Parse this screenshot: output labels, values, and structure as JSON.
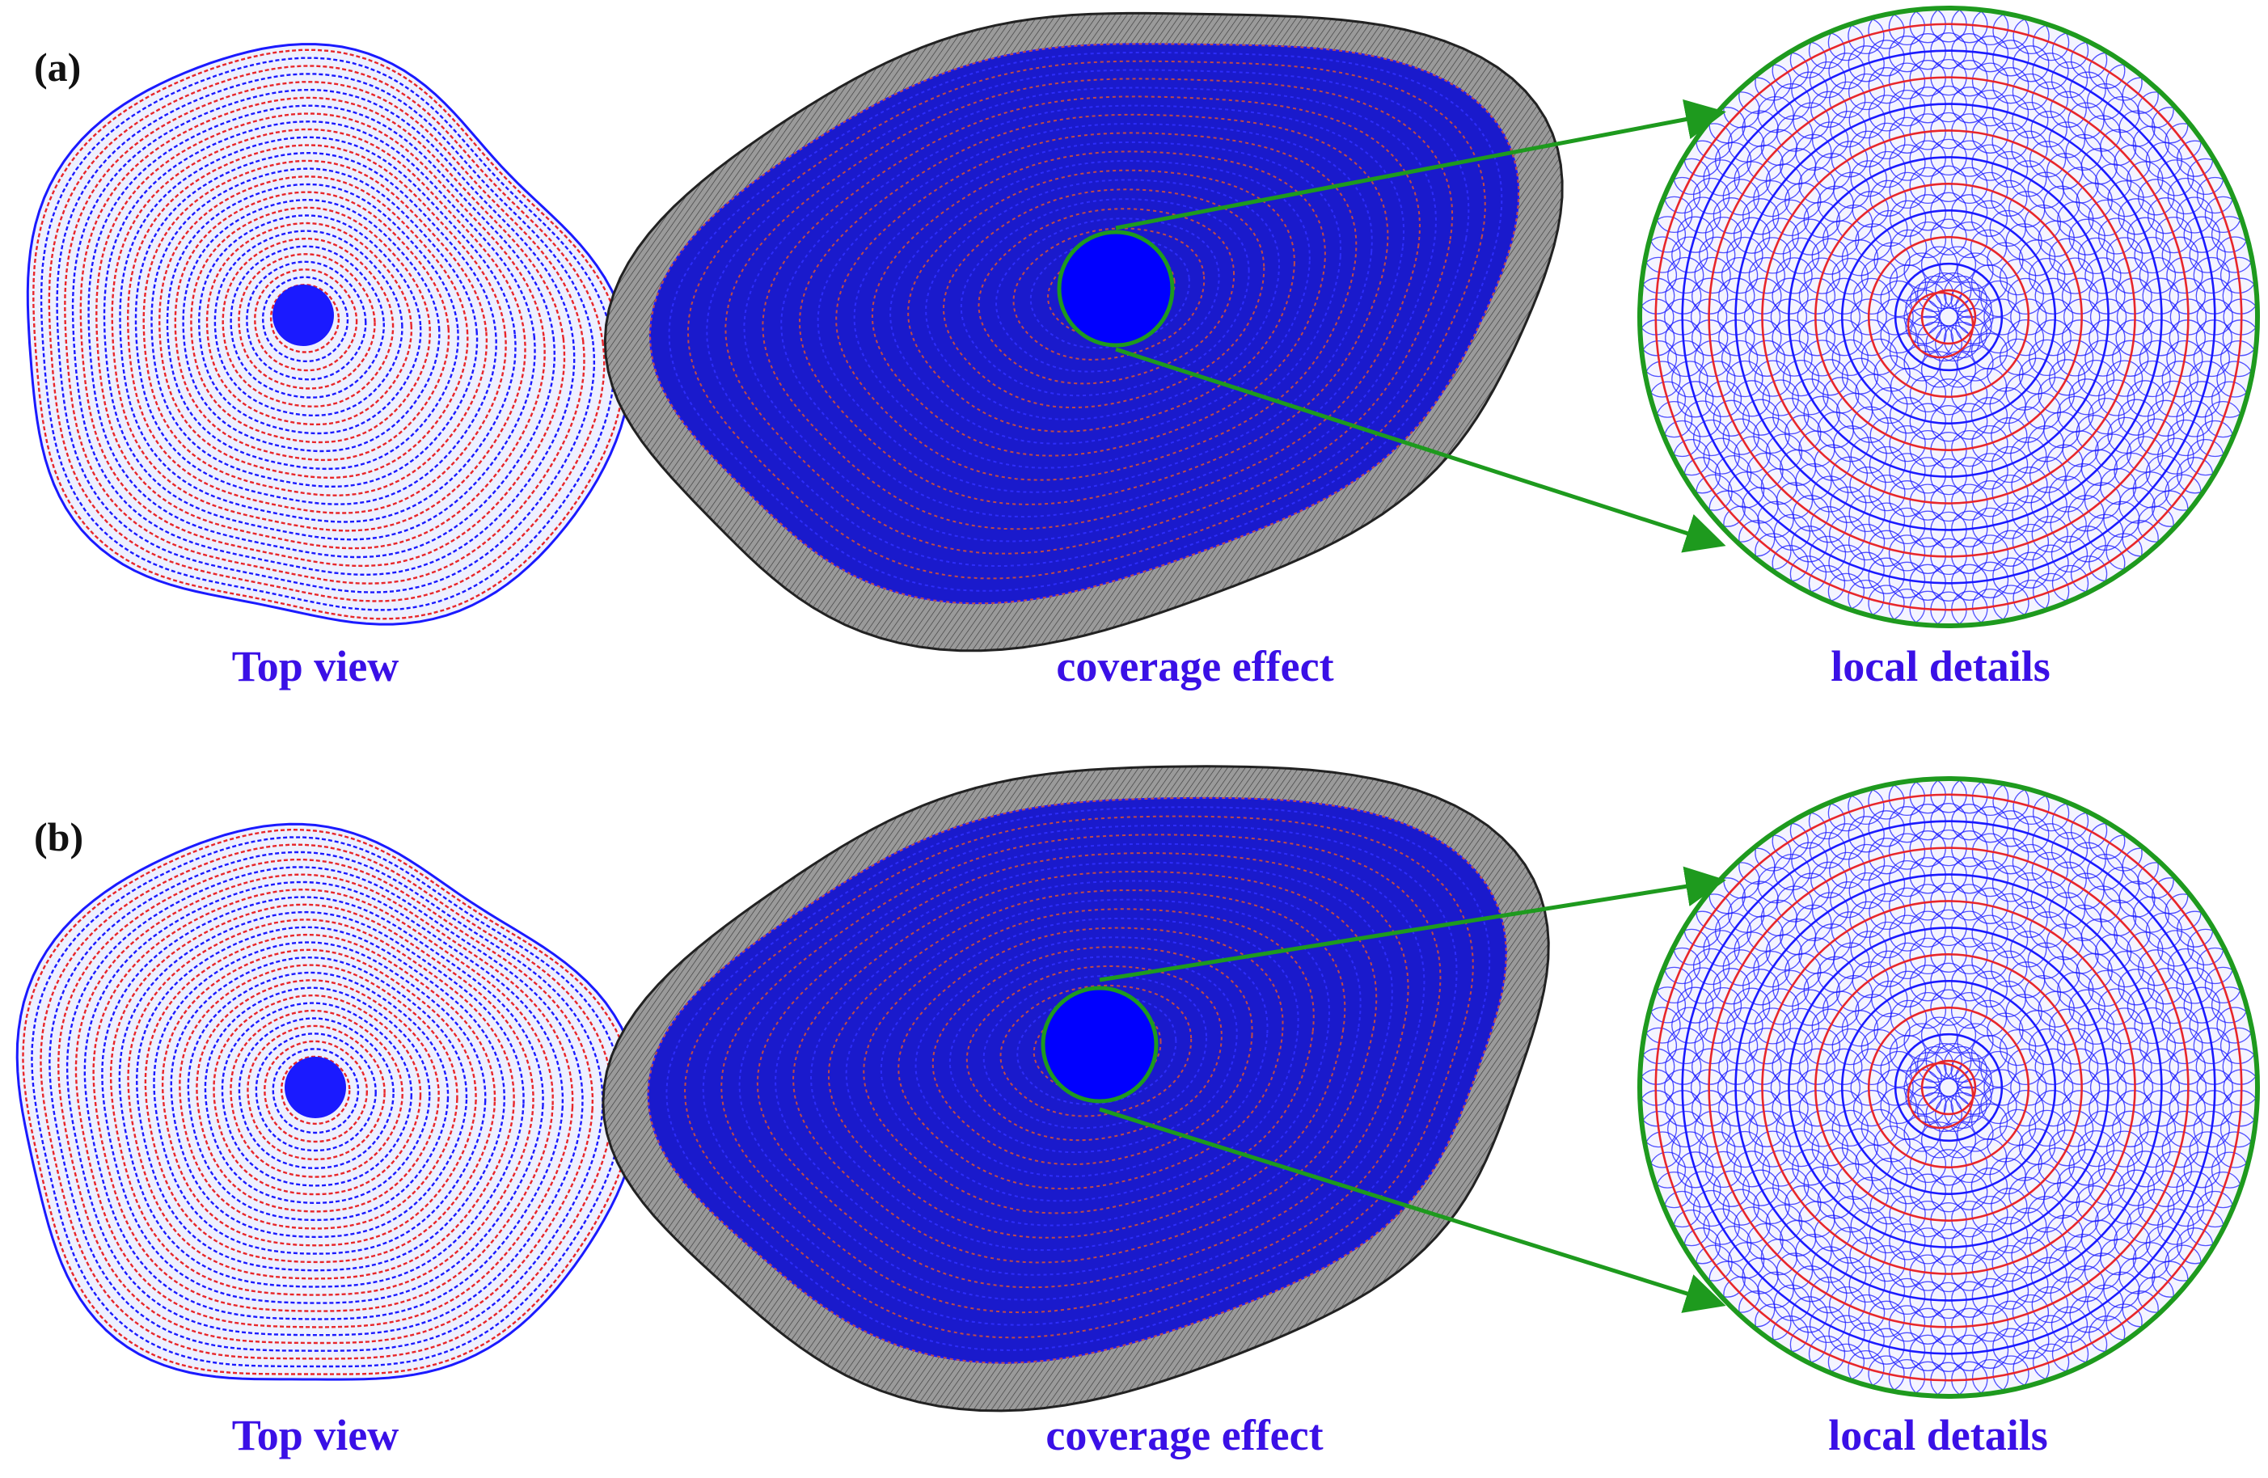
{
  "rows": [
    {
      "label": "(a)",
      "captions": {
        "top_view": "Top view",
        "coverage": "coverage effect",
        "local": "local details"
      }
    },
    {
      "label": "(b)",
      "captions": {
        "top_view": "Top view",
        "coverage": "coverage effect",
        "local": "local details"
      }
    }
  ],
  "colors": {
    "caption": "#3a10e6",
    "path_blue": "#1a1aff",
    "path_red": "#e8262a",
    "surface_gray": "#8a8a8a",
    "surface_edge": "#222222",
    "zoom_green": "#1e9a1e",
    "background": "#ffffff"
  }
}
